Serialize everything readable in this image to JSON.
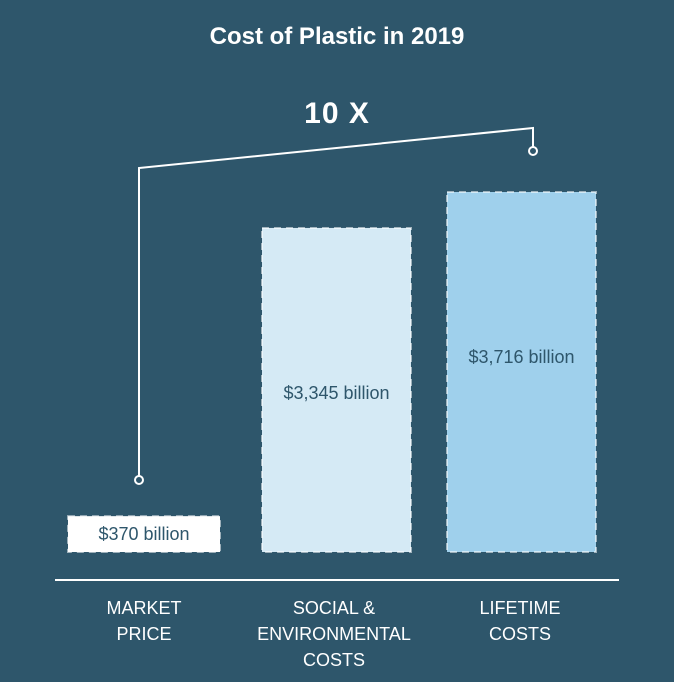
{
  "chart_data": {
    "type": "bar",
    "title": "Cost of Plastic in 2019",
    "annotation": "10 X",
    "categories": [
      [
        "MARKET",
        "PRICE"
      ],
      [
        "SOCIAL &",
        "ENVIRONMENTAL",
        "COSTS"
      ],
      [
        "LIFETIME",
        "COSTS"
      ]
    ],
    "values": [
      370,
      3345,
      3716
    ],
    "value_labels": [
      "$370 billion",
      "$3,345 billion",
      "$3,716 billion"
    ],
    "unit": "billion USD",
    "ylim": [
      0,
      3716
    ],
    "colors": {
      "background": "#2e566b",
      "market_price": "#ffffff",
      "social_environmental": "#d5eaf5",
      "lifetime": "#9fd0ec",
      "label_dark": "#2e566b",
      "axis": "#ffffff"
    }
  }
}
